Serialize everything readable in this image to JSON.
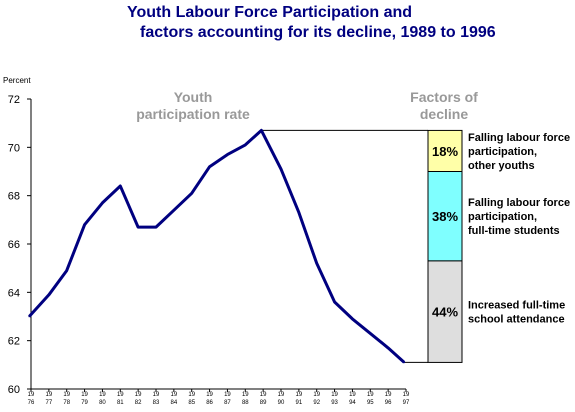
{
  "title": {
    "line1": "Youth Labour Force Participation and",
    "line2": "factors accounting for its decline, 1989 to 1996"
  },
  "colors": {
    "title": "#000080",
    "line": "#000080",
    "annotation": "#999999",
    "box_top": "#ffffa8",
    "box_middle": "#7fffff",
    "box_bottom": "#dedede"
  },
  "chart_data": {
    "type": "line",
    "ylabel": "Percent",
    "ylim": [
      60,
      72
    ],
    "yticks": [
      60,
      62,
      64,
      66,
      68,
      70,
      72
    ],
    "x_tick_labels": [
      {
        "top": "19",
        "bottom": "76"
      },
      {
        "top": "19",
        "bottom": "77"
      },
      {
        "top": "19",
        "bottom": "78"
      },
      {
        "top": "19",
        "bottom": "79"
      },
      {
        "top": "19",
        "bottom": "80"
      },
      {
        "top": "19",
        "bottom": "81"
      },
      {
        "top": "19",
        "bottom": "82"
      },
      {
        "top": "19",
        "bottom": "83"
      },
      {
        "top": "19",
        "bottom": "84"
      },
      {
        "top": "19",
        "bottom": "85"
      },
      {
        "top": "19",
        "bottom": "86"
      },
      {
        "top": "19",
        "bottom": "87"
      },
      {
        "top": "19",
        "bottom": "88"
      },
      {
        "top": "19",
        "bottom": "89"
      },
      {
        "top": "19",
        "bottom": "90"
      },
      {
        "top": "19",
        "bottom": "91"
      },
      {
        "top": "19",
        "bottom": "92"
      },
      {
        "top": "19",
        "bottom": "93"
      },
      {
        "top": "19",
        "bottom": "94"
      },
      {
        "top": "19",
        "bottom": "95"
      },
      {
        "top": "19",
        "bottom": "96"
      },
      {
        "top": "19",
        "bottom": "97"
      }
    ],
    "series": [
      {
        "points": [
          {
            "x": 1975.9,
            "y": 63.0
          },
          {
            "x": 1977.0,
            "y": 63.9
          },
          {
            "x": 1978.0,
            "y": 64.9
          },
          {
            "x": 1979.0,
            "y": 66.8
          },
          {
            "x": 1980.0,
            "y": 67.7
          },
          {
            "x": 1981.0,
            "y": 68.4
          },
          {
            "x": 1982.0,
            "y": 66.7
          },
          {
            "x": 1983.0,
            "y": 66.7
          },
          {
            "x": 1984.0,
            "y": 67.4
          },
          {
            "x": 1985.0,
            "y": 68.1
          },
          {
            "x": 1986.0,
            "y": 69.2
          },
          {
            "x": 1987.0,
            "y": 69.7
          },
          {
            "x": 1988.0,
            "y": 70.1
          },
          {
            "x": 1988.9,
            "y": 70.7
          },
          {
            "x": 1990.0,
            "y": 69.1
          },
          {
            "x": 1991.0,
            "y": 67.3
          },
          {
            "x": 1992.0,
            "y": 65.2
          },
          {
            "x": 1993.0,
            "y": 63.6
          },
          {
            "x": 1994.0,
            "y": 62.9
          },
          {
            "x": 1995.0,
            "y": 62.3
          },
          {
            "x": 1996.0,
            "y": 61.7
          },
          {
            "x": 1996.9,
            "y": 61.1
          }
        ]
      }
    ],
    "annotations": {
      "series_label": [
        "Youth",
        "participation rate"
      ],
      "factors_label": [
        "Factors of",
        "decline"
      ]
    },
    "decline_factors": {
      "from": 70.7,
      "to": 61.1,
      "segments": [
        {
          "percent_label": "18%",
          "y_from": 69.0,
          "y_to": 70.7,
          "text": [
            "Falling labour force",
            "participation,",
            "other youths"
          ],
          "color": "#ffffa8"
        },
        {
          "percent_label": "38%",
          "y_from": 65.3,
          "y_to": 69.0,
          "text": [
            "Falling labour force",
            "participation,",
            "full-time students"
          ],
          "color": "#7fffff"
        },
        {
          "percent_label": "44%",
          "y_from": 61.1,
          "y_to": 65.3,
          "text": [
            "Increased full-time",
            "school attendance"
          ],
          "color": "#dedede"
        }
      ]
    }
  }
}
